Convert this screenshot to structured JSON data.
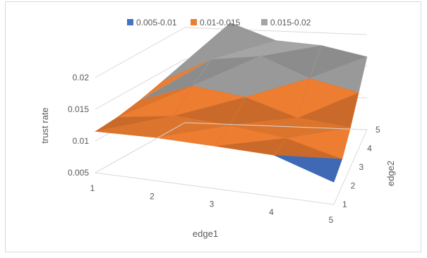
{
  "chart_data": {
    "type": "surface",
    "title": "",
    "xlabel": "edge1",
    "ylabel": "edge2",
    "zlabel": "trust rate",
    "x": [
      1,
      2,
      3,
      4,
      5
    ],
    "y": [
      1,
      2,
      3,
      4,
      5
    ],
    "x_ticks": [
      "1",
      "2",
      "3",
      "4",
      "5"
    ],
    "y_ticks": [
      "1",
      "2",
      "3",
      "4",
      "5"
    ],
    "z_ticks": [
      "0.005",
      "0.01",
      "0.015",
      "0.02"
    ],
    "zlim": [
      0.005,
      0.02
    ],
    "z": [
      [
        0.0115,
        0.0118,
        0.0125,
        0.0135,
        0.0145
      ],
      [
        0.0118,
        0.013,
        0.0155,
        0.0175,
        0.021
      ],
      [
        0.0117,
        0.0125,
        0.0145,
        0.0185,
        0.0185
      ],
      [
        0.0115,
        0.0115,
        0.012,
        0.0155,
        0.018
      ],
      [
        0.0085,
        0.0092,
        0.0112,
        0.0138,
        0.0165
      ]
    ],
    "bands": [
      {
        "name": "0.005-0.01",
        "min": 0.005,
        "max": 0.01,
        "color": "#4472c4"
      },
      {
        "name": "0.01-0.015",
        "min": 0.01,
        "max": 0.015,
        "color": "#ed7d31"
      },
      {
        "name": "0.015-0.02",
        "min": 0.015,
        "max": 0.02,
        "color": "#a5a5a5"
      }
    ],
    "legend_position": "top",
    "grid": true
  }
}
